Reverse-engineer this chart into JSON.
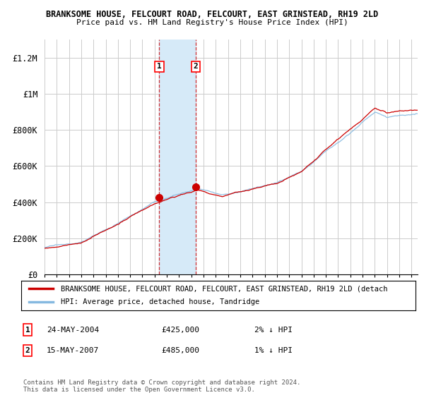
{
  "title_line1": "BRANKSOME HOUSE, FELCOURT ROAD, FELCOURT, EAST GRINSTEAD, RH19 2LD",
  "title_line2": "Price paid vs. HM Land Registry's House Price Index (HPI)",
  "ylabel_ticks": [
    "£0",
    "£200K",
    "£400K",
    "£600K",
    "£800K",
    "£1M",
    "£1.2M"
  ],
  "ytick_values": [
    0,
    200000,
    400000,
    600000,
    800000,
    1000000,
    1200000
  ],
  "ylim": [
    0,
    1300000
  ],
  "xlim_start": 1995.0,
  "xlim_end": 2025.5,
  "purchase1_x": 2004.38,
  "purchase1_y": 425000,
  "purchase1_label": "1",
  "purchase1_date": "24-MAY-2004",
  "purchase1_price": "£425,000",
  "purchase1_hpi": "2% ↓ HPI",
  "purchase2_x": 2007.37,
  "purchase2_y": 485000,
  "purchase2_label": "2",
  "purchase2_date": "15-MAY-2007",
  "purchase2_price": "£485,000",
  "purchase2_hpi": "1% ↓ HPI",
  "shade_color": "#d6eaf8",
  "line1_color": "#cc0000",
  "line2_color": "#85b9e0",
  "marker_color": "#cc0000",
  "grid_color": "#cccccc",
  "background_color": "#ffffff",
  "legend_line1": "BRANKSOME HOUSE, FELCOURT ROAD, FELCOURT, EAST GRINSTEAD, RH19 2LD (detach",
  "legend_line2": "HPI: Average price, detached house, Tandridge",
  "footer": "Contains HM Land Registry data © Crown copyright and database right 2024.\nThis data is licensed under the Open Government Licence v3.0."
}
